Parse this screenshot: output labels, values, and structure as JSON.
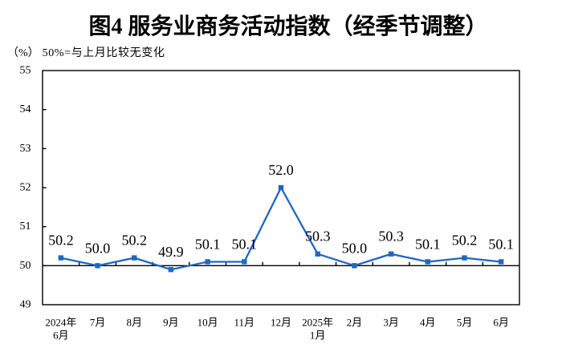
{
  "chart": {
    "title": "图4 服务业商务活动指数（经季节调整）",
    "unit_label": "（%）",
    "note": "50%=与上月比较无变化"
  },
  "chart_data": {
    "type": "line",
    "title": "图4 服务业商务活动指数（经季节调整）",
    "subtitle": "（%） 50%=与上月比较无变化",
    "categories": [
      [
        "2024年",
        "6月"
      ],
      [
        "7月"
      ],
      [
        "8月"
      ],
      [
        "9月"
      ],
      [
        "10月"
      ],
      [
        "11月"
      ],
      [
        "12月"
      ],
      [
        "2025年",
        "1月"
      ],
      [
        "2月"
      ],
      [
        "3月"
      ],
      [
        "4月"
      ],
      [
        "5月"
      ],
      [
        "6月"
      ]
    ],
    "series": [
      {
        "name": "服务业商务活动指数",
        "values": [
          50.2,
          50.0,
          50.2,
          49.9,
          50.1,
          50.1,
          52.0,
          50.3,
          50.0,
          50.3,
          50.1,
          50.2,
          50.1
        ]
      }
    ],
    "point_labels": [
      "50.2",
      "50.0",
      "50.2",
      "49.9",
      "50.1",
      "50.1",
      "52.0",
      "50.3",
      "50.0",
      "50.3",
      "50.1",
      "50.2",
      "50.1"
    ],
    "ylabel": "",
    "xlabel": "",
    "ylim": [
      49,
      55
    ],
    "ytick_step": 1,
    "baseline": 50,
    "grid": false,
    "legend": "none",
    "line_color": "#1f67c3",
    "marker": "square",
    "axis_color": "#000000",
    "label_color": "#000000"
  }
}
